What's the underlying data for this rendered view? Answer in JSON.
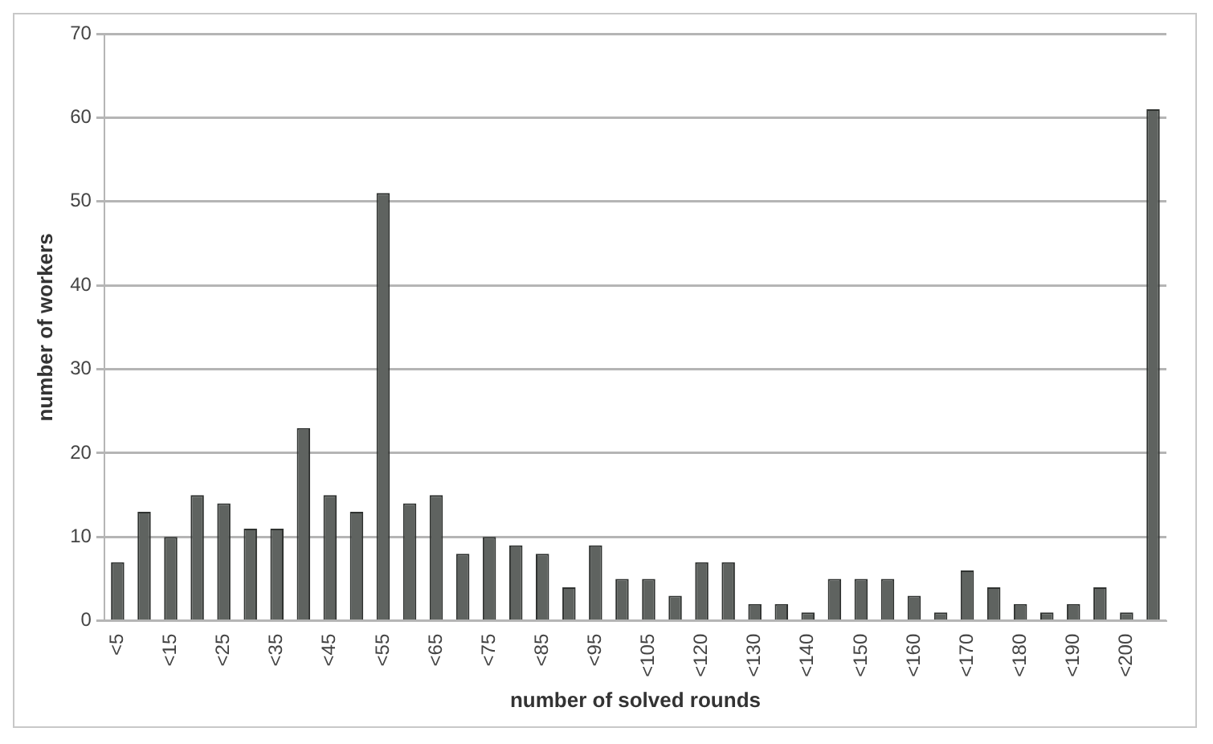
{
  "chart_data": {
    "type": "bar",
    "xlabel": "number of solved rounds",
    "ylabel": "number of workers",
    "categories": [
      "<5",
      null,
      "<15",
      null,
      "<25",
      null,
      "<35",
      null,
      "<45",
      null,
      "<55",
      null,
      "<65",
      null,
      "<75",
      null,
      "<85",
      null,
      "<95",
      null,
      "<105",
      null,
      "<120",
      null,
      "<130",
      null,
      "<140",
      null,
      "<150",
      null,
      "<160",
      null,
      "<170",
      null,
      "<180",
      null,
      "<190",
      null,
      "<200",
      null
    ],
    "values": [
      7,
      13,
      10,
      15,
      14,
      11,
      11,
      23,
      15,
      13,
      51,
      14,
      15,
      8,
      10,
      9,
      8,
      4,
      9,
      5,
      5,
      3,
      7,
      7,
      2,
      2,
      1,
      5,
      5,
      5,
      3,
      1,
      6,
      4,
      2,
      1,
      2,
      4,
      1,
      61
    ],
    "color": "#5f6360",
    "ylim": [
      0,
      70
    ],
    "yticks": [
      0,
      10,
      20,
      30,
      40,
      50,
      60,
      70
    ],
    "grid": "y",
    "legend": false
  }
}
